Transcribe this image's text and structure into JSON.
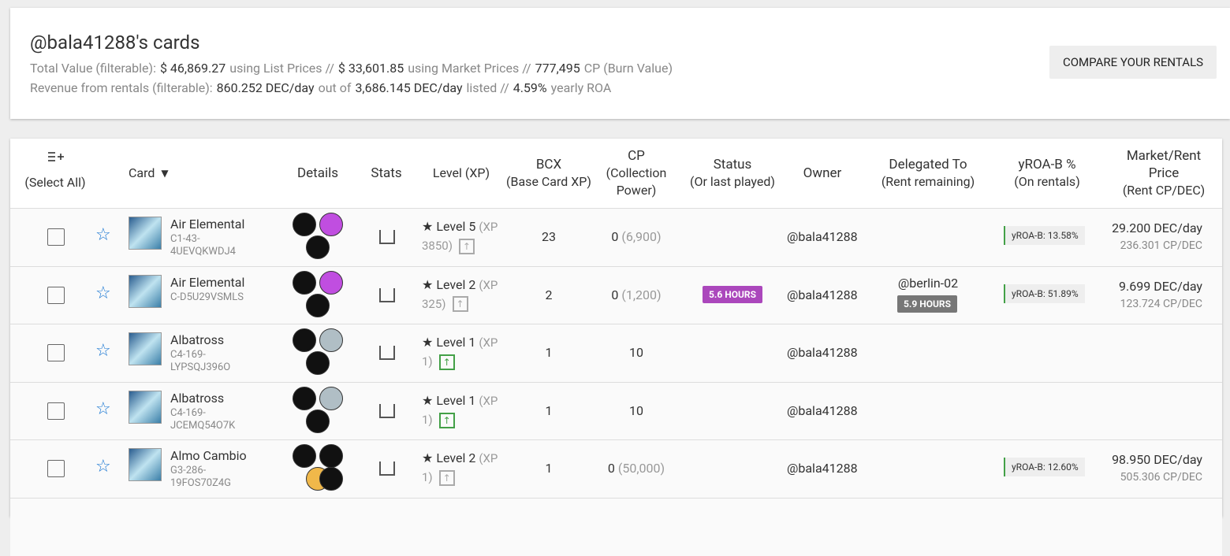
{
  "header": {
    "title": "@bala41288's cards",
    "line1": [
      "Total Value (filterable):",
      "$ 46,869.27",
      "using List Prices //",
      "$ 33,601.85",
      "using Market Prices //",
      "777,495",
      "CP (Burn Value)"
    ],
    "line2": [
      "Revenue from rentals (filterable):",
      "860.252 DEC/day",
      "out of",
      "3,686.145 DEC/day",
      "listed //",
      "4.59%",
      "yearly ROA"
    ],
    "button": "COMPARE YOUR RENTALS"
  },
  "table": {
    "columns": {
      "select": "(Select All)",
      "card": "Card",
      "details": "Details",
      "stats": "Stats",
      "level": "Level",
      "level_sub": "(XP)",
      "bcx": "BCX",
      "bcx_sub": "(Base Card XP)",
      "cp": "CP",
      "cp_sub": "(Collection Power)",
      "status": "Status",
      "status_sub": "(Or last played)",
      "owner": "Owner",
      "delegated": "Delegated To",
      "delegated_sub": "(Rent remaining)",
      "yroa": "yROA-B %",
      "yroa_sub": "(On rentals)",
      "price": "Market/Rent Price",
      "price_sub": "(Rent CP/DEC)"
    },
    "rows": [
      {
        "name": "Air Elemental",
        "id": "C1-43-4UEVQKWDJ4",
        "level": "Level 5",
        "xp": "(XP 3850)",
        "arrow_color": "#aaaaaa",
        "bcx": "23",
        "cp": "0",
        "cp_burn": "(6,900)",
        "owner": "@bala41288",
        "yroa": "yROA-B: 13.58%",
        "price": "29.200 DEC/day",
        "cp_dec": "236.301 CP/DEC"
      },
      {
        "name": "Air Elemental",
        "id": "C-D5U29VSMLS",
        "level": "Level 2",
        "xp": "(XP 325)",
        "arrow_color": "#aaaaaa",
        "bcx": "2",
        "cp": "0",
        "cp_burn": "(1,200)",
        "status": "5.6 HOURS",
        "owner": "@bala41288",
        "delegated_to": "@berlin-02",
        "rent_remaining": "5.9 HOURS",
        "yroa": "yROA-B: 51.89%",
        "price": "9.699 DEC/day",
        "cp_dec": "123.724 CP/DEC"
      },
      {
        "name": "Albatross",
        "id": "C4-169-LYPSQJ396O",
        "level": "Level 1",
        "xp": "(XP 1)",
        "arrow_color": "#43a047",
        "bcx": "1",
        "cp": "10",
        "owner": "@bala41288"
      },
      {
        "name": "Albatross",
        "id": "C4-169-JCEMQ54O7K",
        "level": "Level 1",
        "xp": "(XP 1)",
        "arrow_color": "#43a047",
        "bcx": "1",
        "cp": "10",
        "owner": "@bala41288"
      },
      {
        "name": "Almo Cambio",
        "id": "G3-286-19FOS70Z4G",
        "level": "Level 2",
        "xp": "(XP 1)",
        "arrow_color": "#aaaaaa",
        "bcx": "1",
        "cp": "0",
        "cp_burn": "(50,000)",
        "owner": "@bala41288",
        "yroa": "yROA-B: 12.60%",
        "price": "98.950 DEC/day",
        "cp_dec": "505.306 CP/DEC"
      }
    ]
  }
}
